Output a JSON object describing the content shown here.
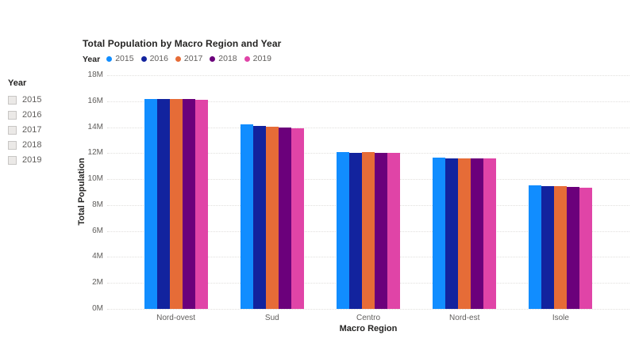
{
  "slicer": {
    "title": "Year",
    "items": [
      {
        "label": "2015",
        "checked": false
      },
      {
        "label": "2016",
        "checked": false
      },
      {
        "label": "2017",
        "checked": false
      },
      {
        "label": "2018",
        "checked": false
      },
      {
        "label": "2019",
        "checked": false
      }
    ]
  },
  "chart_data": {
    "type": "bar",
    "title": "Total Population by Macro Region and Year",
    "legend_title": "Year",
    "legend_position": "top",
    "categories": [
      "Nord-ovest",
      "Sud",
      "Centro",
      "Nord-est",
      "Isole"
    ],
    "series": [
      {
        "name": "2015",
        "color": "#118DFF",
        "values": [
          16.2,
          14.2,
          12.1,
          11.65,
          9.5
        ]
      },
      {
        "name": "2016",
        "color": "#12239E",
        "values": [
          16.15,
          14.1,
          12.05,
          11.6,
          9.45
        ]
      },
      {
        "name": "2017",
        "color": "#E66C37",
        "values": [
          16.15,
          14.05,
          12.1,
          11.6,
          9.45
        ]
      },
      {
        "name": "2018",
        "color": "#6B007B",
        "values": [
          16.15,
          14.0,
          12.05,
          11.6,
          9.4
        ]
      },
      {
        "name": "2019",
        "color": "#E044A7",
        "values": [
          16.1,
          13.9,
          12.0,
          11.6,
          9.35
        ]
      }
    ],
    "values_unit": "millions",
    "xlabel": "Macro Region",
    "ylabel": "Total Population",
    "ylim": [
      0,
      18
    ],
    "ytick_step": 2,
    "yticks": [
      "0M",
      "2M",
      "4M",
      "6M",
      "8M",
      "10M",
      "12M",
      "14M",
      "16M",
      "18M"
    ],
    "grid": "horizontal-dotted",
    "gridline_color": "#E1DFDD"
  }
}
